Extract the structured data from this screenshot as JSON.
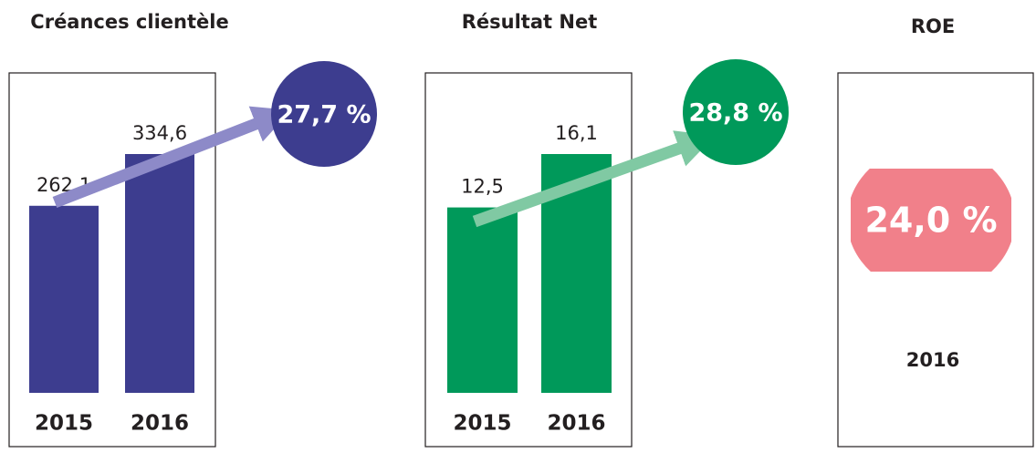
{
  "chart_data": [
    {
      "type": "bar",
      "title": "Créances clientèle",
      "categories": [
        "2015",
        "2016"
      ],
      "values": [
        262.1,
        334.6
      ],
      "value_labels": [
        "262,1",
        "334,6"
      ],
      "color": "#3d3d8f",
      "annotation": "27,7 %",
      "annotation_color": "#3d3d8f",
      "arrow_color": "#8d8ac8"
    },
    {
      "type": "bar",
      "title": "Résultat Net",
      "categories": [
        "2015",
        "2016"
      ],
      "values": [
        12.5,
        16.1
      ],
      "value_labels": [
        "12,5",
        "16,1"
      ],
      "color": "#00995a",
      "annotation": "28,8 %",
      "annotation_color": "#00995a",
      "arrow_color": "#80c9a3"
    },
    {
      "type": "kpi",
      "title": "ROE",
      "categories": [
        "2016"
      ],
      "values": [
        24.0
      ],
      "value_labels": [
        "24,0 %"
      ],
      "color": "#f1808a"
    }
  ]
}
